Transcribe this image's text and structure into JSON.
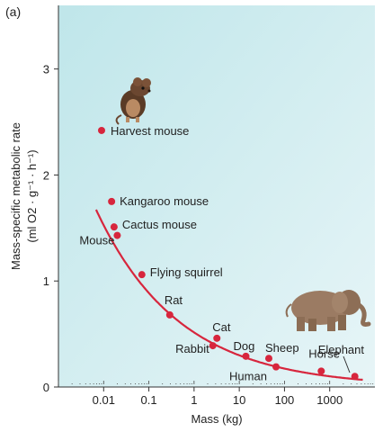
{
  "panel_label": "(a)",
  "chart_data": {
    "type": "scatter",
    "title": "",
    "xlabel": "Mass (kg)",
    "ylabel_line1": "Mass-specific metabolic rate",
    "ylabel_line2": "(ml O2 · g⁻¹ · h⁻¹)",
    "x_scale": "log",
    "xlim": [
      0.001,
      10000
    ],
    "ylim": [
      0,
      3.6
    ],
    "x_ticks": [
      {
        "value": 0.01,
        "label": "0.01"
      },
      {
        "value": 0.1,
        "label": "0.1"
      },
      {
        "value": 1,
        "label": "1"
      },
      {
        "value": 10,
        "label": "10"
      },
      {
        "value": 100,
        "label": "100"
      },
      {
        "value": 1000,
        "label": "1000"
      }
    ],
    "y_ticks": [
      {
        "value": 0,
        "label": "0"
      },
      {
        "value": 1,
        "label": "1"
      },
      {
        "value": 2,
        "label": "2"
      },
      {
        "value": 3,
        "label": "3"
      }
    ],
    "grid": false,
    "background_color": "#cde9ec",
    "curve_color": "#d7263d",
    "point_color": "#d7263d",
    "points": [
      {
        "name": "Harvest mouse",
        "x": 0.009,
        "y": 2.42
      },
      {
        "name": "Kangaroo mouse",
        "x": 0.015,
        "y": 1.75
      },
      {
        "name": "Cactus mouse",
        "x": 0.017,
        "y": 1.51
      },
      {
        "name": "Mouse",
        "x": 0.02,
        "y": 1.43
      },
      {
        "name": "Flying squirrel",
        "x": 0.07,
        "y": 1.06
      },
      {
        "name": "Rat",
        "x": 0.29,
        "y": 0.68
      },
      {
        "name": "Cat",
        "x": 3.2,
        "y": 0.46
      },
      {
        "name": "Rabbit",
        "x": 2.6,
        "y": 0.39
      },
      {
        "name": "Dog",
        "x": 14,
        "y": 0.29
      },
      {
        "name": "Sheep",
        "x": 45,
        "y": 0.27
      },
      {
        "name": "Human",
        "x": 65,
        "y": 0.19
      },
      {
        "name": "Horse",
        "x": 650,
        "y": 0.15
      },
      {
        "name": "Elephant",
        "x": 3600,
        "y": 0.1
      }
    ]
  },
  "illustrations": [
    {
      "name": "mouse-illustration",
      "subject": "harvest mouse"
    },
    {
      "name": "elephant-illustration",
      "subject": "elephant"
    }
  ]
}
